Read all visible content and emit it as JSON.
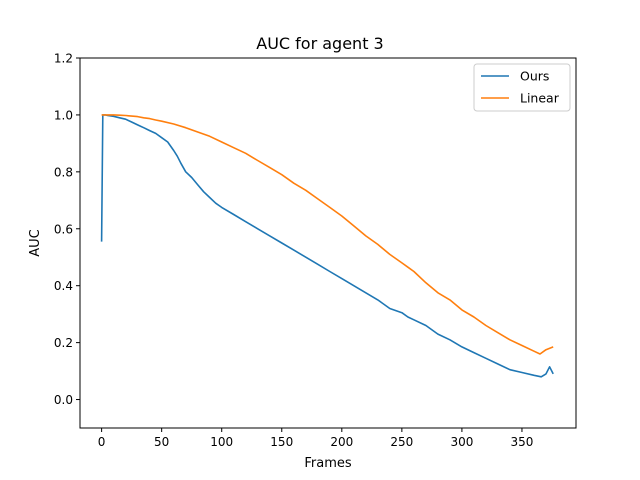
{
  "chart_data": {
    "type": "line",
    "title": "AUC for agent 3",
    "xlabel": "Frames",
    "ylabel": "AUC",
    "xlim": [
      -18,
      395
    ],
    "ylim": [
      -0.1,
      1.2
    ],
    "xticks": [
      "0",
      "50",
      "100",
      "150",
      "200",
      "250",
      "300",
      "350"
    ],
    "yticks": [
      "0.0",
      "0.2",
      "0.4",
      "0.6",
      "0.8",
      "1.0",
      "1.2"
    ],
    "grid": false,
    "legend_position": "top-right",
    "series": [
      {
        "name": "Ours",
        "color": "#1f77b4",
        "x": [
          0,
          1,
          3,
          5,
          10,
          15,
          20,
          25,
          30,
          35,
          40,
          45,
          50,
          55,
          60,
          63,
          66,
          70,
          75,
          80,
          85,
          90,
          95,
          100,
          110,
          120,
          130,
          140,
          150,
          160,
          170,
          180,
          190,
          200,
          210,
          220,
          230,
          240,
          250,
          255,
          260,
          270,
          280,
          290,
          300,
          310,
          320,
          330,
          340,
          350,
          360,
          366,
          370,
          373,
          376
        ],
        "y": [
          0.555,
          1.0,
          1.0,
          0.998,
          0.995,
          0.99,
          0.985,
          0.975,
          0.965,
          0.955,
          0.945,
          0.935,
          0.92,
          0.905,
          0.875,
          0.855,
          0.83,
          0.8,
          0.78,
          0.755,
          0.73,
          0.71,
          0.69,
          0.675,
          0.65,
          0.625,
          0.6,
          0.575,
          0.55,
          0.525,
          0.5,
          0.475,
          0.45,
          0.425,
          0.4,
          0.375,
          0.35,
          0.32,
          0.305,
          0.29,
          0.28,
          0.26,
          0.23,
          0.21,
          0.185,
          0.165,
          0.145,
          0.125,
          0.105,
          0.095,
          0.085,
          0.08,
          0.09,
          0.115,
          0.09
        ]
      },
      {
        "name": "Linear",
        "color": "#ff7f0e",
        "x": [
          0,
          5,
          10,
          15,
          20,
          25,
          30,
          35,
          40,
          45,
          50,
          60,
          70,
          80,
          90,
          100,
          110,
          120,
          130,
          140,
          150,
          160,
          170,
          180,
          190,
          200,
          210,
          220,
          230,
          240,
          250,
          255,
          260,
          270,
          280,
          290,
          300,
          310,
          320,
          330,
          340,
          350,
          360,
          365,
          370,
          376
        ],
        "y": [
          1.0,
          1.0,
          1.0,
          0.999,
          0.998,
          0.996,
          0.994,
          0.99,
          0.987,
          0.982,
          0.978,
          0.968,
          0.955,
          0.94,
          0.925,
          0.905,
          0.885,
          0.865,
          0.84,
          0.815,
          0.79,
          0.76,
          0.735,
          0.705,
          0.675,
          0.645,
          0.61,
          0.575,
          0.545,
          0.51,
          0.48,
          0.465,
          0.45,
          0.41,
          0.375,
          0.35,
          0.315,
          0.29,
          0.26,
          0.235,
          0.21,
          0.19,
          0.17,
          0.16,
          0.175,
          0.185
        ]
      }
    ]
  }
}
